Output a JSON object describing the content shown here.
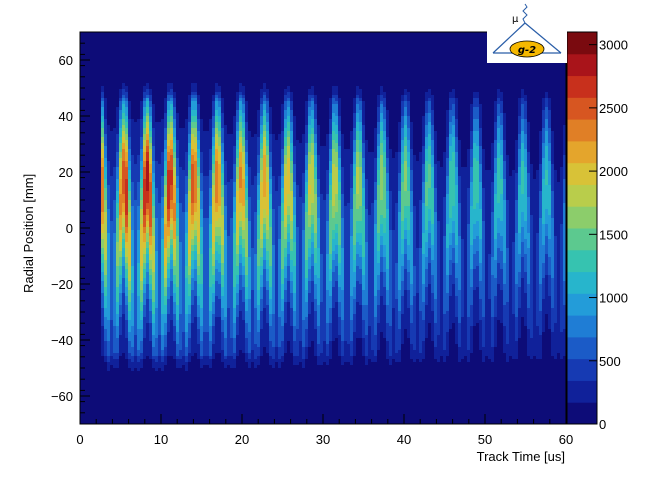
{
  "chart_data": {
    "type": "heatmap",
    "title": "",
    "xlabel": "Track Time [us]",
    "ylabel": "Radial Position [mm]",
    "xlim": [
      0,
      60
    ],
    "ylim": [
      -70,
      70
    ],
    "x_ticks": [
      "0",
      "10",
      "20",
      "30",
      "40",
      "50",
      "60"
    ],
    "y_ticks": [
      "-60",
      "-40",
      "-20",
      "0",
      "20",
      "40",
      "60"
    ],
    "colorbar": {
      "range": [
        0,
        3100
      ],
      "ticks": [
        "0",
        "500",
        "1000",
        "1500",
        "2000",
        "2500",
        "3000"
      ],
      "palette": [
        "#0d0c78",
        "#10219a",
        "#163ab3",
        "#1b5bc7",
        "#1f7dd5",
        "#239cd9",
        "#27b5cc",
        "#36c3b0",
        "#5cc98f",
        "#8ccd6b",
        "#b9cd4b",
        "#d8c237",
        "#e4a52c",
        "#e07f26",
        "#d75621",
        "#c8301c",
        "#a9141a",
        "#7a0a0f"
      ]
    },
    "series": [
      {
        "description": "cyclotron oscillation bands",
        "start_time_us": 2.5,
        "period_us": 2.9,
        "peak_y_mm": 20,
        "trough_y_mm": -35,
        "peak_counts": [
          2600,
          3000,
          2950,
          2700,
          2500,
          2350,
          2300,
          2200,
          2050,
          1950,
          1850,
          1750,
          1650,
          1550,
          1450,
          1400,
          1350,
          1300,
          1250,
          1200
        ]
      }
    ]
  },
  "logo": {
    "symbol": "μ",
    "label": "g-2",
    "colors": {
      "bubble": "#f5b800",
      "line": "#2a5ea8",
      "text": "#000000"
    }
  },
  "colors": {
    "plot_background": "#0d0c78",
    "frame": "#000000"
  }
}
